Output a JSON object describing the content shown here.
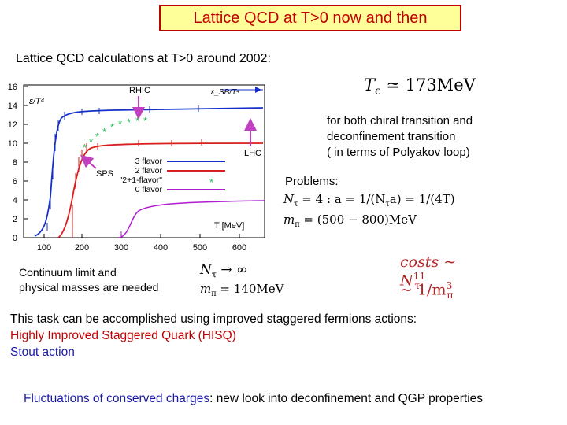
{
  "title": "Lattice QCD at T>0 now and then",
  "subtitle": "Lattice QCD calculations at T>0 around  2002:",
  "plot": {
    "y_ticks": [
      "0",
      "2",
      "4",
      "6",
      "8",
      "10",
      "12",
      "14",
      "16"
    ],
    "x_ticks": [
      "100",
      "200",
      "300",
      "400",
      "500",
      "600"
    ],
    "ylabel": "ε/T⁴",
    "sb_label": "ε_SB/T⁴",
    "xlabel": "T [MeV]",
    "rhic": "RHIC",
    "lhc": "LHC",
    "sps": "SPS",
    "legend": [
      "3 flavor",
      "2 flavor",
      "\"2+1-flavor\"",
      "0 flavor"
    ],
    "colors": {
      "three": "#1530c8",
      "two": "#d81e1e",
      "two_one": "#22bb55",
      "zero": "#b01cd0",
      "arrow": "#c040c0"
    }
  },
  "tc_lhs": "T",
  "tc_sub": "c",
  "tc_rhs": " ≃ 173MeV",
  "desc": [
    "for both chiral transition and",
    "deconfinement transition",
    "( in terms of  Polyakov loop)"
  ],
  "problems": "Problems:",
  "math1_lhs": "N",
  "math1_sub": "τ",
  "math1_rhs": " = 4 : a = 1/(N",
  "math1_tail": "a) = 1/(4T)",
  "math2_lhs": "m",
  "math2_sub": "π",
  "math2_rhs": " = (500 − 800)MeV",
  "math3": "N",
  "math3_sub": "τ",
  "math3_rhs": " → ∞",
  "math4": "m",
  "math4_sub": "π",
  "math4_rhs": " = 140MeV",
  "cost1_a": "costs ∼ N",
  "cost1_sub": "τ",
  "cost1_sup": "11",
  "cost2_a": "∼ 1/m",
  "cost2_sub": "π",
  "cost2_sup": "3",
  "continuum": [
    "Continuum limit and",
    "physical masses are needed"
  ],
  "task": "This task can be accomplished using improved staggered fermions actions:",
  "hisq": " Highly Improved Staggered Quark (HISQ)",
  "stout": "Stout action",
  "fluct_a": "Fluctuations of conserved charges",
  "fluct_b": ": new look into deconfinement and QGP properties"
}
